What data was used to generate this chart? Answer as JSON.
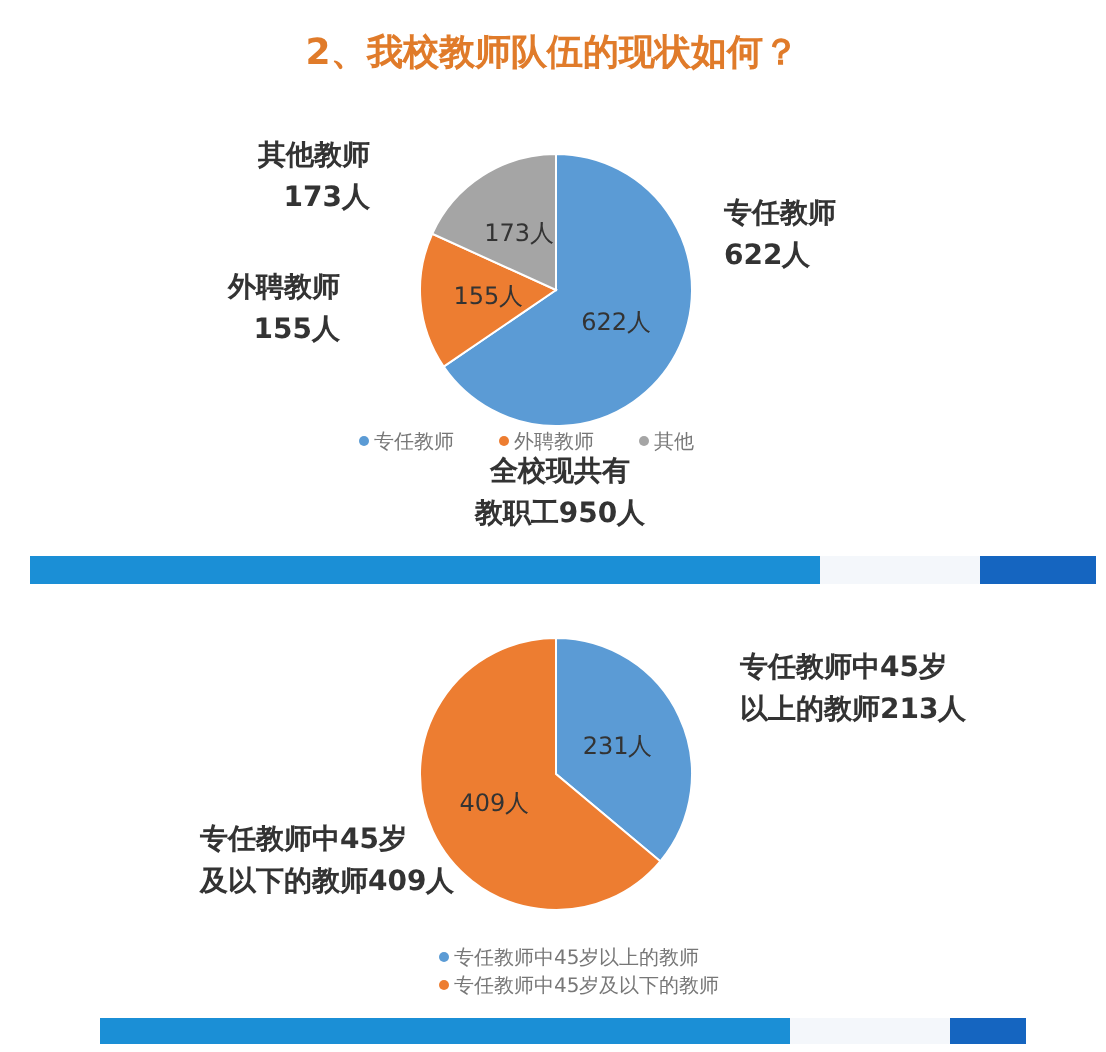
{
  "chart_data": [
    {
      "type": "pie",
      "title": "2、我校教师队伍的现状如何？",
      "categories": [
        "专任教师",
        "外聘教师",
        "其他"
      ],
      "values": [
        622,
        155,
        173
      ],
      "colors": [
        "#5b9bd5",
        "#ed7d31",
        "#a5a5a5"
      ],
      "value_labels": [
        "622人",
        "155人",
        "173人"
      ],
      "legend": "bottom",
      "annotations": [
        "其他教师",
        "173人",
        "外聘教师",
        "155人",
        "专任教师",
        "622人",
        "全校现共有",
        "教职工950人"
      ]
    },
    {
      "type": "pie",
      "categories": [
        "专任教师中45岁以上的教师",
        "专任教师中45岁及以下的教师"
      ],
      "values": [
        231,
        409
      ],
      "colors": [
        "#5b9bd5",
        "#ed7d31"
      ],
      "value_labels": [
        "231人",
        "409人"
      ],
      "legend": "bottom",
      "annotations": [
        "专任教师中45岁",
        "以上的教师213人",
        "专任教师中45岁",
        "及以下的教师409人"
      ]
    }
  ]
}
